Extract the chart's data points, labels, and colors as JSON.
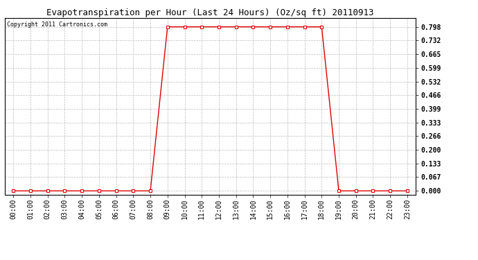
{
  "title": "Evapotranspiration per Hour (Last 24 Hours) (Oz/sq ft) 20110913",
  "copyright_text": "Copyright 2011 Cartronics.com",
  "x_labels": [
    "00:00",
    "01:00",
    "02:00",
    "03:00",
    "04:00",
    "05:00",
    "06:00",
    "07:00",
    "08:00",
    "09:00",
    "10:00",
    "11:00",
    "12:00",
    "13:00",
    "14:00",
    "15:00",
    "16:00",
    "17:00",
    "18:00",
    "19:00",
    "20:00",
    "21:00",
    "22:00",
    "23:00"
  ],
  "y_values": [
    0.0,
    0.0,
    0.0,
    0.0,
    0.0,
    0.0,
    0.0,
    0.0,
    0.0,
    0.798,
    0.798,
    0.798,
    0.798,
    0.798,
    0.798,
    0.798,
    0.798,
    0.798,
    0.798,
    0.0,
    0.0,
    0.0,
    0.0,
    0.0
  ],
  "y_ticks": [
    0.0,
    0.067,
    0.133,
    0.2,
    0.266,
    0.333,
    0.399,
    0.466,
    0.532,
    0.599,
    0.665,
    0.732,
    0.798
  ],
  "line_color": "#dd0000",
  "marker_color": "#dd0000",
  "bg_color": "#ffffff",
  "grid_color": "#bbbbbb",
  "title_fontsize": 9,
  "copyright_fontsize": 6,
  "tick_fontsize": 7,
  "ylim_min": -0.02,
  "ylim_max": 0.84
}
